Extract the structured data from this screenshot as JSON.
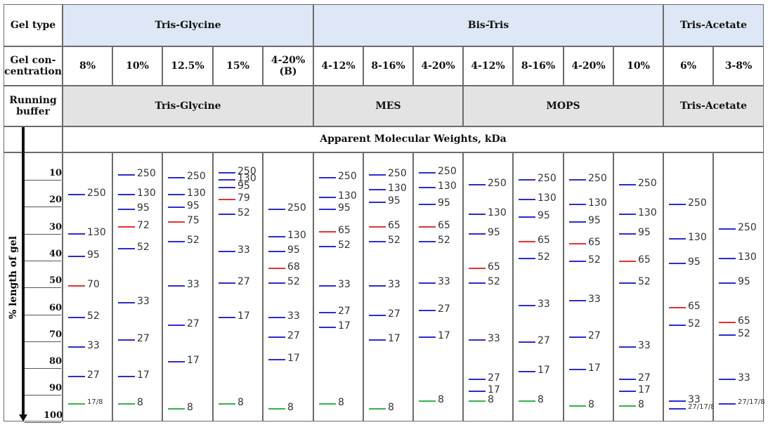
{
  "colors": {
    "blue": "#2b2bd6",
    "red": "#e8302f",
    "green": "#35b24a",
    "header_blue": "#dde7f5",
    "header_grey": "#e3e3e3"
  },
  "headers": {
    "gel_type": "Gel type",
    "gel_concentration": "Gel con-\ncentration",
    "running_buffer": "Running\nbuffer",
    "apparent_mw": "Apparent Molecular Weights, kDa",
    "y_axis": "% length of gel"
  },
  "gel_types": [
    "Tris-Glycine",
    "Bis-Tris",
    "Tris-Acetate"
  ],
  "running_buffers": [
    "Tris-Glycine",
    "MES",
    "MOPS",
    "Tris-Acetate"
  ],
  "concentrations": [
    "8%",
    "10%",
    "12.5%",
    "15%",
    "4-20%\n(B)",
    "4-12%",
    "8-16%",
    "4-20%",
    "4-12%",
    "8-16%",
    "4-20%",
    "10%",
    "6%",
    "3-8%"
  ],
  "percent_ticks": [
    "10",
    "20",
    "30",
    "40",
    "50",
    "60",
    "70",
    "80",
    "90",
    "100"
  ],
  "lanes": [
    {
      "bands": [
        {
          "label": "250",
          "pct": 12,
          "color": "blue"
        },
        {
          "label": "130",
          "pct": 28,
          "color": "blue"
        },
        {
          "label": "95",
          "pct": 37,
          "color": "blue"
        },
        {
          "label": "70",
          "pct": 49,
          "color": "red"
        },
        {
          "label": "52",
          "pct": 62,
          "color": "blue"
        },
        {
          "label": "33",
          "pct": 74,
          "color": "blue"
        },
        {
          "label": "27",
          "pct": 86,
          "color": "blue"
        },
        {
          "label": "17/8",
          "pct": 97,
          "color": "green",
          "small": true
        }
      ]
    },
    {
      "bands": [
        {
          "label": "250",
          "pct": 4,
          "color": "blue"
        },
        {
          "label": "130",
          "pct": 12,
          "color": "blue"
        },
        {
          "label": "95",
          "pct": 18,
          "color": "blue"
        },
        {
          "label": "72",
          "pct": 25,
          "color": "red"
        },
        {
          "label": "52",
          "pct": 34,
          "color": "blue"
        },
        {
          "label": "33",
          "pct": 56,
          "color": "blue"
        },
        {
          "label": "27",
          "pct": 71,
          "color": "blue"
        },
        {
          "label": "17",
          "pct": 86,
          "color": "blue"
        },
        {
          "label": "8",
          "pct": 97,
          "color": "green"
        }
      ]
    },
    {
      "bands": [
        {
          "label": "250",
          "pct": 5,
          "color": "blue"
        },
        {
          "label": "130",
          "pct": 12,
          "color": "blue"
        },
        {
          "label": "95",
          "pct": 17,
          "color": "blue"
        },
        {
          "label": "75",
          "pct": 23,
          "color": "red"
        },
        {
          "label": "52",
          "pct": 31,
          "color": "blue"
        },
        {
          "label": "33",
          "pct": 49,
          "color": "blue"
        },
        {
          "label": "27",
          "pct": 65,
          "color": "blue"
        },
        {
          "label": "17",
          "pct": 80,
          "color": "blue"
        },
        {
          "label": "8",
          "pct": 99,
          "color": "green"
        }
      ]
    },
    {
      "bands": [
        {
          "label": "250",
          "pct": 3,
          "color": "blue"
        },
        {
          "label": "130",
          "pct": 6,
          "color": "blue"
        },
        {
          "label": "95",
          "pct": 9,
          "color": "blue"
        },
        {
          "label": "79",
          "pct": 14,
          "color": "red"
        },
        {
          "label": "52",
          "pct": 20,
          "color": "blue"
        },
        {
          "label": "33",
          "pct": 35,
          "color": "blue"
        },
        {
          "label": "27",
          "pct": 48,
          "color": "blue"
        },
        {
          "label": "17",
          "pct": 62,
          "color": "blue"
        },
        {
          "label": "8",
          "pct": 97,
          "color": "green"
        }
      ]
    },
    {
      "bands": [
        {
          "label": "250",
          "pct": 18,
          "color": "blue"
        },
        {
          "label": "130",
          "pct": 29,
          "color": "blue"
        },
        {
          "label": "95",
          "pct": 35,
          "color": "blue"
        },
        {
          "label": "68",
          "pct": 42,
          "color": "red"
        },
        {
          "label": "52",
          "pct": 48,
          "color": "blue"
        },
        {
          "label": "33",
          "pct": 62,
          "color": "blue"
        },
        {
          "label": "27",
          "pct": 70,
          "color": "blue"
        },
        {
          "label": "17",
          "pct": 79,
          "color": "blue"
        },
        {
          "label": "8",
          "pct": 99,
          "color": "green"
        }
      ]
    },
    {
      "bands": [
        {
          "label": "250",
          "pct": 5,
          "color": "blue"
        },
        {
          "label": "130",
          "pct": 13,
          "color": "blue"
        },
        {
          "label": "95",
          "pct": 18,
          "color": "blue"
        },
        {
          "label": "65",
          "pct": 27,
          "color": "red"
        },
        {
          "label": "52",
          "pct": 33,
          "color": "blue"
        },
        {
          "label": "33",
          "pct": 49,
          "color": "blue"
        },
        {
          "label": "27",
          "pct": 60,
          "color": "blue"
        },
        {
          "label": "17",
          "pct": 66,
          "color": "blue"
        },
        {
          "label": "8",
          "pct": 97,
          "color": "green"
        }
      ]
    },
    {
      "bands": [
        {
          "label": "250",
          "pct": 4,
          "color": "blue"
        },
        {
          "label": "130",
          "pct": 10,
          "color": "blue"
        },
        {
          "label": "95",
          "pct": 15,
          "color": "blue"
        },
        {
          "label": "65",
          "pct": 25,
          "color": "red"
        },
        {
          "label": "52",
          "pct": 31,
          "color": "blue"
        },
        {
          "label": "33",
          "pct": 49,
          "color": "blue"
        },
        {
          "label": "27",
          "pct": 61,
          "color": "blue"
        },
        {
          "label": "17",
          "pct": 71,
          "color": "blue"
        },
        {
          "label": "8",
          "pct": 99,
          "color": "green"
        }
      ]
    },
    {
      "bands": [
        {
          "label": "250",
          "pct": 3,
          "color": "blue"
        },
        {
          "label": "130",
          "pct": 9,
          "color": "blue"
        },
        {
          "label": "95",
          "pct": 16,
          "color": "blue"
        },
        {
          "label": "65",
          "pct": 25,
          "color": "red"
        },
        {
          "label": "52",
          "pct": 31,
          "color": "blue"
        },
        {
          "label": "33",
          "pct": 48,
          "color": "blue"
        },
        {
          "label": "27",
          "pct": 59,
          "color": "blue"
        },
        {
          "label": "17",
          "pct": 70,
          "color": "blue"
        },
        {
          "label": "8",
          "pct": 96,
          "color": "green"
        }
      ]
    },
    {
      "bands": [
        {
          "label": "250",
          "pct": 8,
          "color": "blue"
        },
        {
          "label": "130",
          "pct": 20,
          "color": "blue"
        },
        {
          "label": "95",
          "pct": 28,
          "color": "blue"
        },
        {
          "label": "65",
          "pct": 42,
          "color": "red"
        },
        {
          "label": "52",
          "pct": 48,
          "color": "blue"
        },
        {
          "label": "33",
          "pct": 71,
          "color": "blue"
        },
        {
          "label": "27",
          "pct": 87,
          "color": "blue"
        },
        {
          "label": "17",
          "pct": 92,
          "color": "blue"
        },
        {
          "label": "8",
          "pct": 96,
          "color": "green"
        }
      ]
    },
    {
      "bands": [
        {
          "label": "250",
          "pct": 6,
          "color": "blue"
        },
        {
          "label": "130",
          "pct": 14,
          "color": "blue"
        },
        {
          "label": "95",
          "pct": 21,
          "color": "blue"
        },
        {
          "label": "65",
          "pct": 31,
          "color": "red"
        },
        {
          "label": "52",
          "pct": 38,
          "color": "blue"
        },
        {
          "label": "33",
          "pct": 57,
          "color": "blue"
        },
        {
          "label": "27",
          "pct": 72,
          "color": "blue"
        },
        {
          "label": "17",
          "pct": 84,
          "color": "blue"
        },
        {
          "label": "8",
          "pct": 96,
          "color": "green"
        }
      ]
    },
    {
      "bands": [
        {
          "label": "250",
          "pct": 6,
          "color": "blue"
        },
        {
          "label": "130",
          "pct": 16,
          "color": "blue"
        },
        {
          "label": "95",
          "pct": 23,
          "color": "blue"
        },
        {
          "label": "65",
          "pct": 32,
          "color": "red"
        },
        {
          "label": "52",
          "pct": 39,
          "color": "blue"
        },
        {
          "label": "33",
          "pct": 55,
          "color": "blue"
        },
        {
          "label": "27",
          "pct": 70,
          "color": "blue"
        },
        {
          "label": "17",
          "pct": 83,
          "color": "blue"
        },
        {
          "label": "8",
          "pct": 98,
          "color": "green"
        }
      ]
    },
    {
      "bands": [
        {
          "label": "250",
          "pct": 8,
          "color": "blue"
        },
        {
          "label": "130",
          "pct": 20,
          "color": "blue"
        },
        {
          "label": "95",
          "pct": 28,
          "color": "blue"
        },
        {
          "label": "65",
          "pct": 39,
          "color": "red"
        },
        {
          "label": "52",
          "pct": 48,
          "color": "blue"
        },
        {
          "label": "33",
          "pct": 74,
          "color": "blue"
        },
        {
          "label": "27",
          "pct": 87,
          "color": "blue"
        },
        {
          "label": "17",
          "pct": 92,
          "color": "blue"
        },
        {
          "label": "8",
          "pct": 98,
          "color": "green"
        }
      ]
    },
    {
      "bands": [
        {
          "label": "250",
          "pct": 16,
          "color": "blue"
        },
        {
          "label": "130",
          "pct": 30,
          "color": "blue"
        },
        {
          "label": "95",
          "pct": 40,
          "color": "blue"
        },
        {
          "label": "65",
          "pct": 58,
          "color": "red"
        },
        {
          "label": "52",
          "pct": 65,
          "color": "blue"
        },
        {
          "label": "33",
          "pct": 96,
          "color": "blue"
        },
        {
          "label": "27/17/8",
          "pct": 99,
          "color": "blue",
          "small": true
        }
      ]
    },
    {
      "bands": [
        {
          "label": "250",
          "pct": 26,
          "color": "blue"
        },
        {
          "label": "130",
          "pct": 38,
          "color": "blue"
        },
        {
          "label": "95",
          "pct": 48,
          "color": "blue"
        },
        {
          "label": "65",
          "pct": 64,
          "color": "red"
        },
        {
          "label": "52",
          "pct": 69,
          "color": "blue"
        },
        {
          "label": "33",
          "pct": 87,
          "color": "blue"
        },
        {
          "label": "27/17/8",
          "pct": 97,
          "color": "blue",
          "small": true
        }
      ]
    }
  ]
}
